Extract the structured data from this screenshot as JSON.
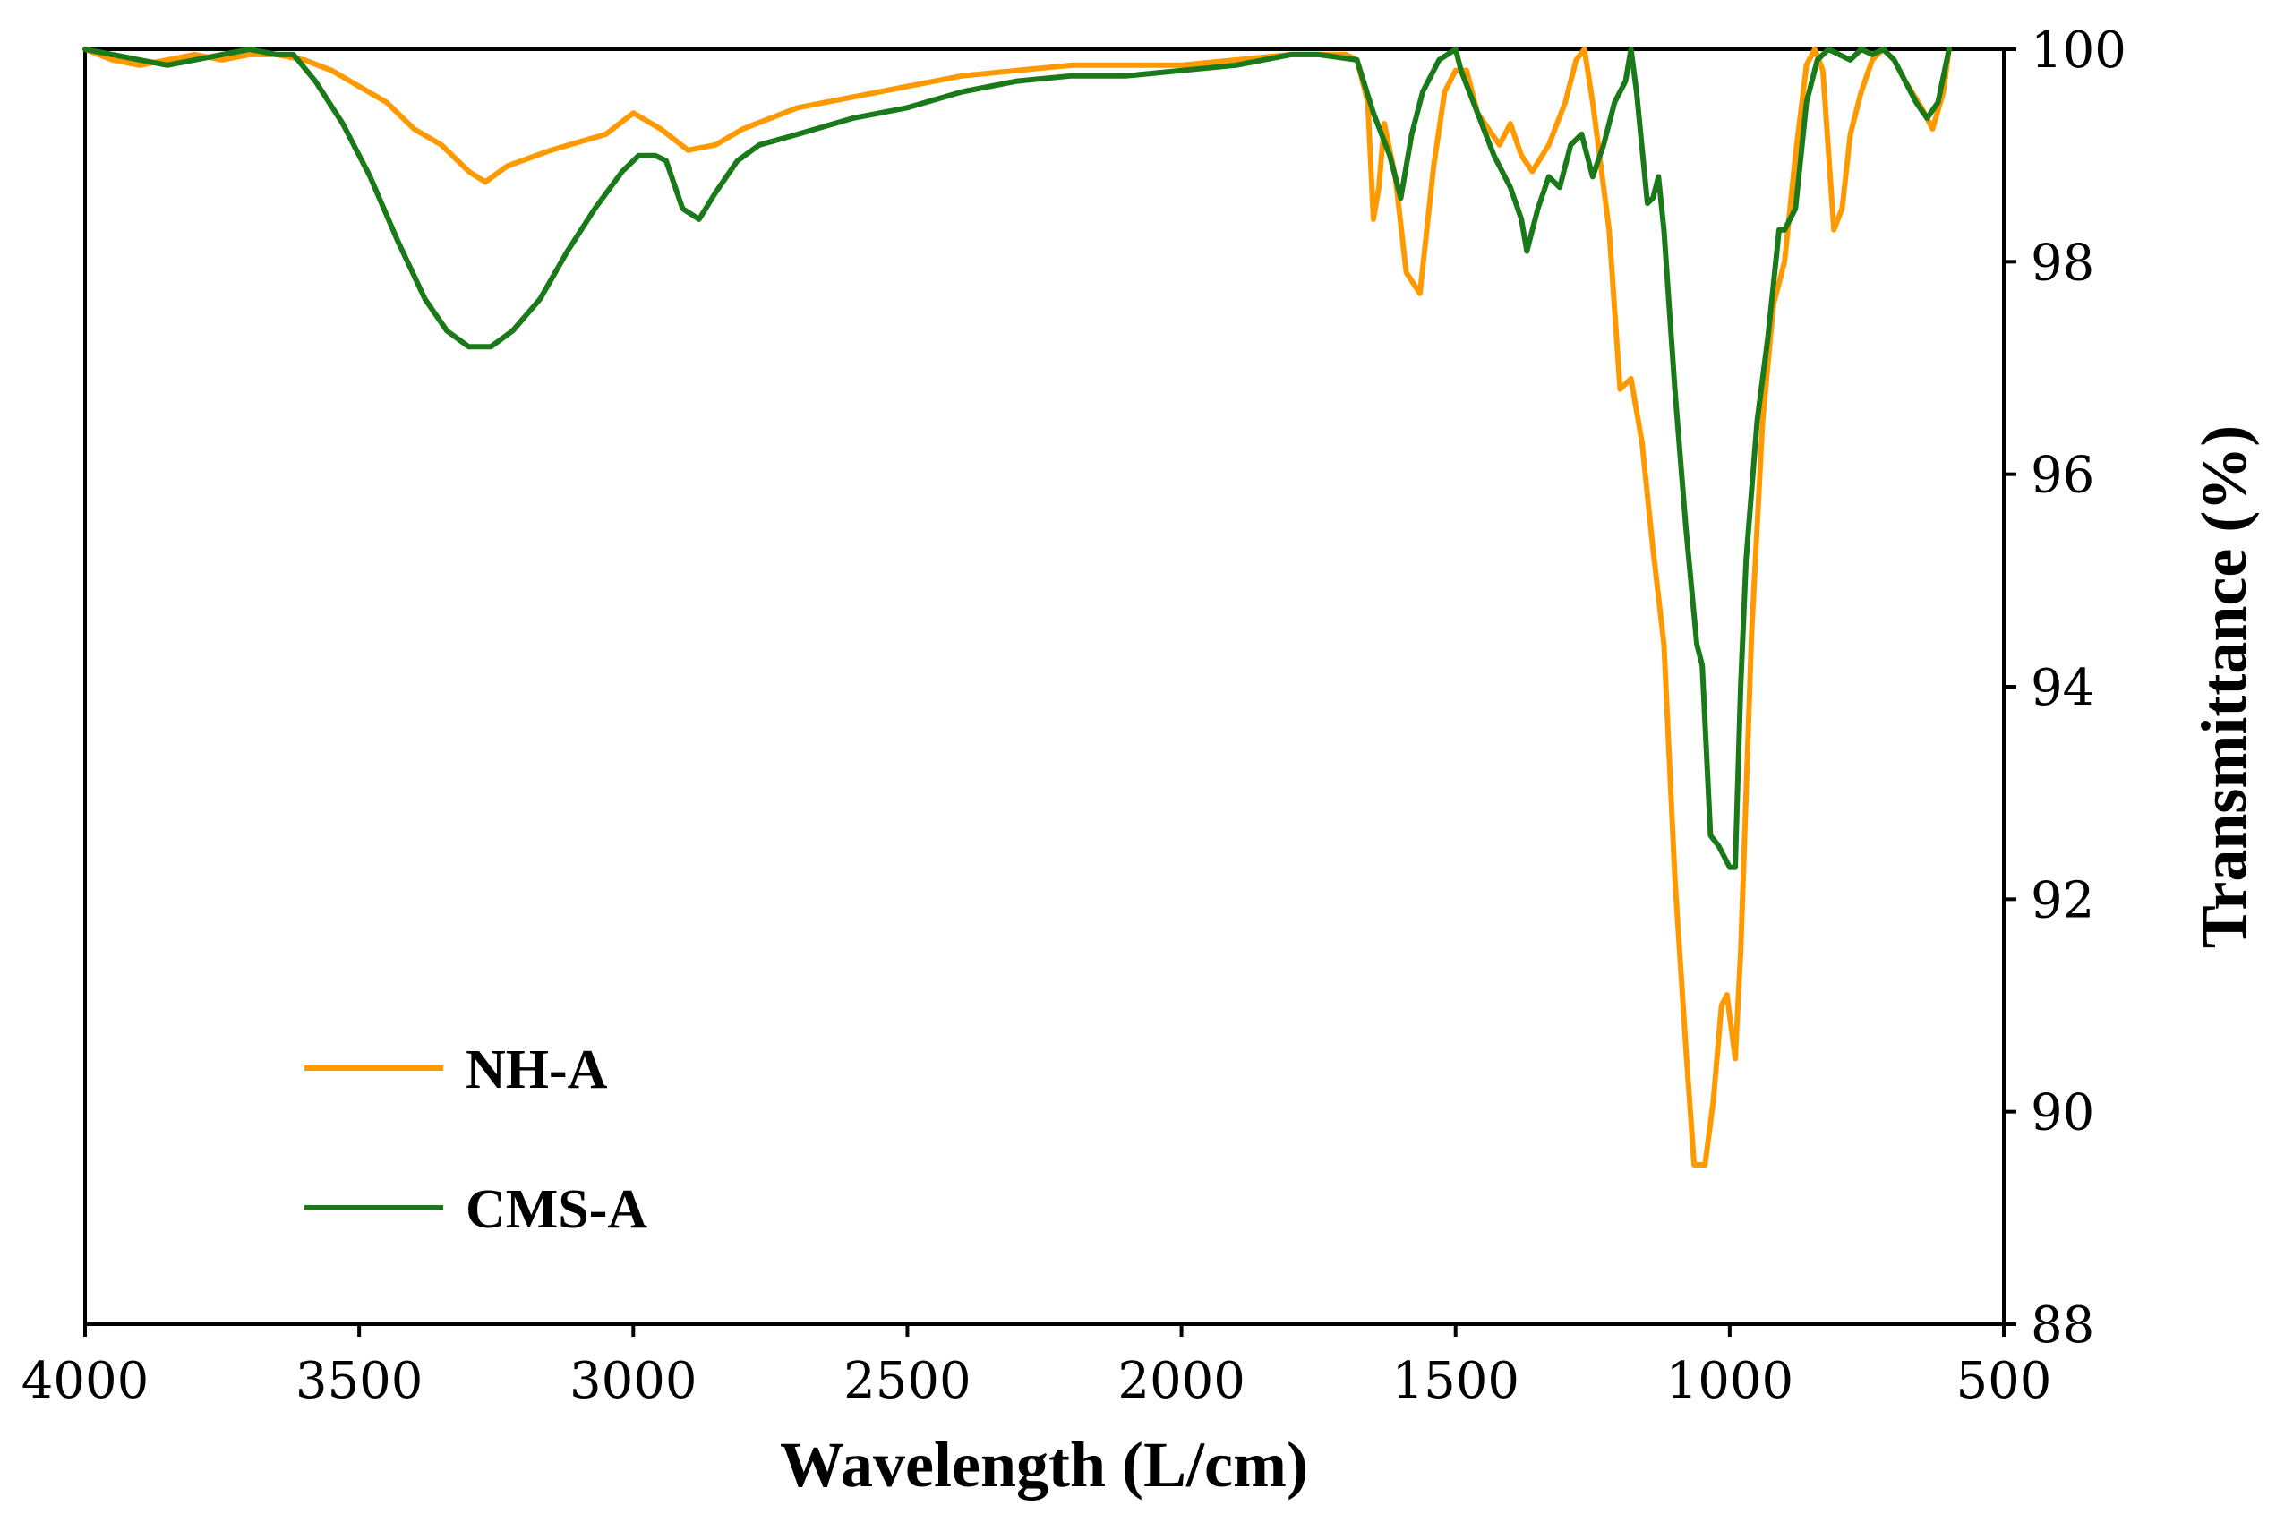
{
  "chart_data": {
    "type": "line",
    "title": "",
    "xlabel": "Wavelength (L/cm)",
    "ylabel": "Transmittance (%)",
    "xlim": [
      4000,
      500
    ],
    "ylim": [
      88,
      100
    ],
    "x_ticks": [
      "4000",
      "3500",
      "3000",
      "2500",
      "2000",
      "1500",
      "1000",
      "500"
    ],
    "y_ticks": [
      "88",
      "90",
      "92",
      "94",
      "96",
      "98",
      "100"
    ],
    "y_axis_side": "right",
    "legend_position": "bottom-left",
    "grid": false,
    "series": [
      {
        "name": "NH-A",
        "color": "#FF9900",
        "points": [
          [
            4000,
            100
          ],
          [
            3950,
            99.9
          ],
          [
            3900,
            99.85
          ],
          [
            3850,
            99.9
          ],
          [
            3800,
            99.95
          ],
          [
            3750,
            99.9
          ],
          [
            3700,
            99.95
          ],
          [
            3650,
            99.95
          ],
          [
            3600,
            99.9
          ],
          [
            3550,
            99.8
          ],
          [
            3500,
            99.65
          ],
          [
            3450,
            99.5
          ],
          [
            3400,
            99.25
          ],
          [
            3350,
            99.1
          ],
          [
            3300,
            98.85
          ],
          [
            3270,
            98.75
          ],
          [
            3230,
            98.9
          ],
          [
            3150,
            99.05
          ],
          [
            3050,
            99.2
          ],
          [
            3000,
            99.4
          ],
          [
            2950,
            99.25
          ],
          [
            2900,
            99.05
          ],
          [
            2850,
            99.1
          ],
          [
            2800,
            99.25
          ],
          [
            2750,
            99.35
          ],
          [
            2700,
            99.45
          ],
          [
            2600,
            99.55
          ],
          [
            2500,
            99.65
          ],
          [
            2400,
            99.75
          ],
          [
            2300,
            99.8
          ],
          [
            2200,
            99.85
          ],
          [
            2000,
            99.85
          ],
          [
            1900,
            99.9
          ],
          [
            1800,
            99.95
          ],
          [
            1700,
            99.95
          ],
          [
            1680,
            99.9
          ],
          [
            1660,
            99.5
          ],
          [
            1650,
            98.4
          ],
          [
            1640,
            98.7
          ],
          [
            1630,
            99.3
          ],
          [
            1610,
            98.8
          ],
          [
            1590,
            97.9
          ],
          [
            1565,
            97.7
          ],
          [
            1540,
            98.9
          ],
          [
            1520,
            99.6
          ],
          [
            1500,
            99.8
          ],
          [
            1480,
            99.8
          ],
          [
            1460,
            99.4
          ],
          [
            1420,
            99.1
          ],
          [
            1400,
            99.3
          ],
          [
            1380,
            99.0
          ],
          [
            1360,
            98.85
          ],
          [
            1330,
            99.1
          ],
          [
            1300,
            99.5
          ],
          [
            1280,
            99.9
          ],
          [
            1265,
            100
          ],
          [
            1250,
            99.5
          ],
          [
            1220,
            98.3
          ],
          [
            1200,
            96.8
          ],
          [
            1180,
            96.9
          ],
          [
            1160,
            96.3
          ],
          [
            1140,
            95.3
          ],
          [
            1120,
            94.4
          ],
          [
            1100,
            92.2
          ],
          [
            1080,
            90.6
          ],
          [
            1065,
            89.5
          ],
          [
            1045,
            89.5
          ],
          [
            1030,
            90.1
          ],
          [
            1015,
            91.0
          ],
          [
            1005,
            91.1
          ],
          [
            990,
            90.5
          ],
          [
            980,
            91.5
          ],
          [
            960,
            94.5
          ],
          [
            940,
            96.5
          ],
          [
            920,
            97.6
          ],
          [
            900,
            98.0
          ],
          [
            880,
            99.0
          ],
          [
            860,
            99.85
          ],
          [
            845,
            100
          ],
          [
            830,
            99.8
          ],
          [
            810,
            98.3
          ],
          [
            795,
            98.5
          ],
          [
            780,
            99.2
          ],
          [
            760,
            99.6
          ],
          [
            740,
            99.9
          ],
          [
            720,
            100
          ],
          [
            700,
            99.9
          ],
          [
            680,
            99.7
          ],
          [
            650,
            99.45
          ],
          [
            630,
            99.25
          ],
          [
            610,
            99.6
          ],
          [
            600,
            100
          ]
        ]
      },
      {
        "name": "CMS-A",
        "color": "#1A7A1A",
        "points": [
          [
            4000,
            100
          ],
          [
            3950,
            99.95
          ],
          [
            3900,
            99.9
          ],
          [
            3850,
            99.85
          ],
          [
            3800,
            99.9
          ],
          [
            3750,
            99.95
          ],
          [
            3700,
            100
          ],
          [
            3650,
            99.95
          ],
          [
            3620,
            99.95
          ],
          [
            3580,
            99.7
          ],
          [
            3530,
            99.3
          ],
          [
            3480,
            98.8
          ],
          [
            3430,
            98.2
          ],
          [
            3380,
            97.65
          ],
          [
            3340,
            97.35
          ],
          [
            3300,
            97.2
          ],
          [
            3260,
            97.2
          ],
          [
            3220,
            97.35
          ],
          [
            3170,
            97.65
          ],
          [
            3120,
            98.1
          ],
          [
            3070,
            98.5
          ],
          [
            3020,
            98.85
          ],
          [
            2990,
            99.0
          ],
          [
            2960,
            99.0
          ],
          [
            2940,
            98.95
          ],
          [
            2910,
            98.5
          ],
          [
            2880,
            98.4
          ],
          [
            2850,
            98.65
          ],
          [
            2810,
            98.95
          ],
          [
            2770,
            99.1
          ],
          [
            2700,
            99.2
          ],
          [
            2600,
            99.35
          ],
          [
            2500,
            99.45
          ],
          [
            2400,
            99.6
          ],
          [
            2300,
            99.7
          ],
          [
            2200,
            99.75
          ],
          [
            2100,
            99.75
          ],
          [
            2000,
            99.8
          ],
          [
            1900,
            99.85
          ],
          [
            1800,
            99.95
          ],
          [
            1750,
            99.95
          ],
          [
            1680,
            99.9
          ],
          [
            1650,
            99.4
          ],
          [
            1620,
            99.0
          ],
          [
            1600,
            98.6
          ],
          [
            1580,
            99.2
          ],
          [
            1560,
            99.6
          ],
          [
            1530,
            99.9
          ],
          [
            1500,
            100
          ],
          [
            1490,
            99.8
          ],
          [
            1460,
            99.4
          ],
          [
            1430,
            99.0
          ],
          [
            1400,
            98.7
          ],
          [
            1380,
            98.4
          ],
          [
            1370,
            98.1
          ],
          [
            1350,
            98.5
          ],
          [
            1330,
            98.8
          ],
          [
            1310,
            98.7
          ],
          [
            1290,
            99.1
          ],
          [
            1270,
            99.2
          ],
          [
            1250,
            98.8
          ],
          [
            1230,
            99.1
          ],
          [
            1210,
            99.5
          ],
          [
            1190,
            99.7
          ],
          [
            1180,
            100
          ],
          [
            1170,
            99.6
          ],
          [
            1150,
            98.55
          ],
          [
            1140,
            98.6
          ],
          [
            1130,
            98.8
          ],
          [
            1120,
            98.3
          ],
          [
            1100,
            96.8
          ],
          [
            1080,
            95.5
          ],
          [
            1060,
            94.4
          ],
          [
            1050,
            94.2
          ],
          [
            1035,
            92.6
          ],
          [
            1020,
            92.5
          ],
          [
            1000,
            92.3
          ],
          [
            990,
            92.3
          ],
          [
            980,
            94.0
          ],
          [
            970,
            95.2
          ],
          [
            950,
            96.5
          ],
          [
            930,
            97.3
          ],
          [
            910,
            98.3
          ],
          [
            900,
            98.3
          ],
          [
            880,
            98.5
          ],
          [
            860,
            99.5
          ],
          [
            840,
            99.9
          ],
          [
            820,
            100
          ],
          [
            800,
            99.95
          ],
          [
            780,
            99.9
          ],
          [
            760,
            100
          ],
          [
            740,
            99.95
          ],
          [
            720,
            100
          ],
          [
            700,
            99.9
          ],
          [
            680,
            99.7
          ],
          [
            660,
            99.5
          ],
          [
            640,
            99.35
          ],
          [
            620,
            99.5
          ],
          [
            600,
            100
          ]
        ]
      }
    ]
  }
}
